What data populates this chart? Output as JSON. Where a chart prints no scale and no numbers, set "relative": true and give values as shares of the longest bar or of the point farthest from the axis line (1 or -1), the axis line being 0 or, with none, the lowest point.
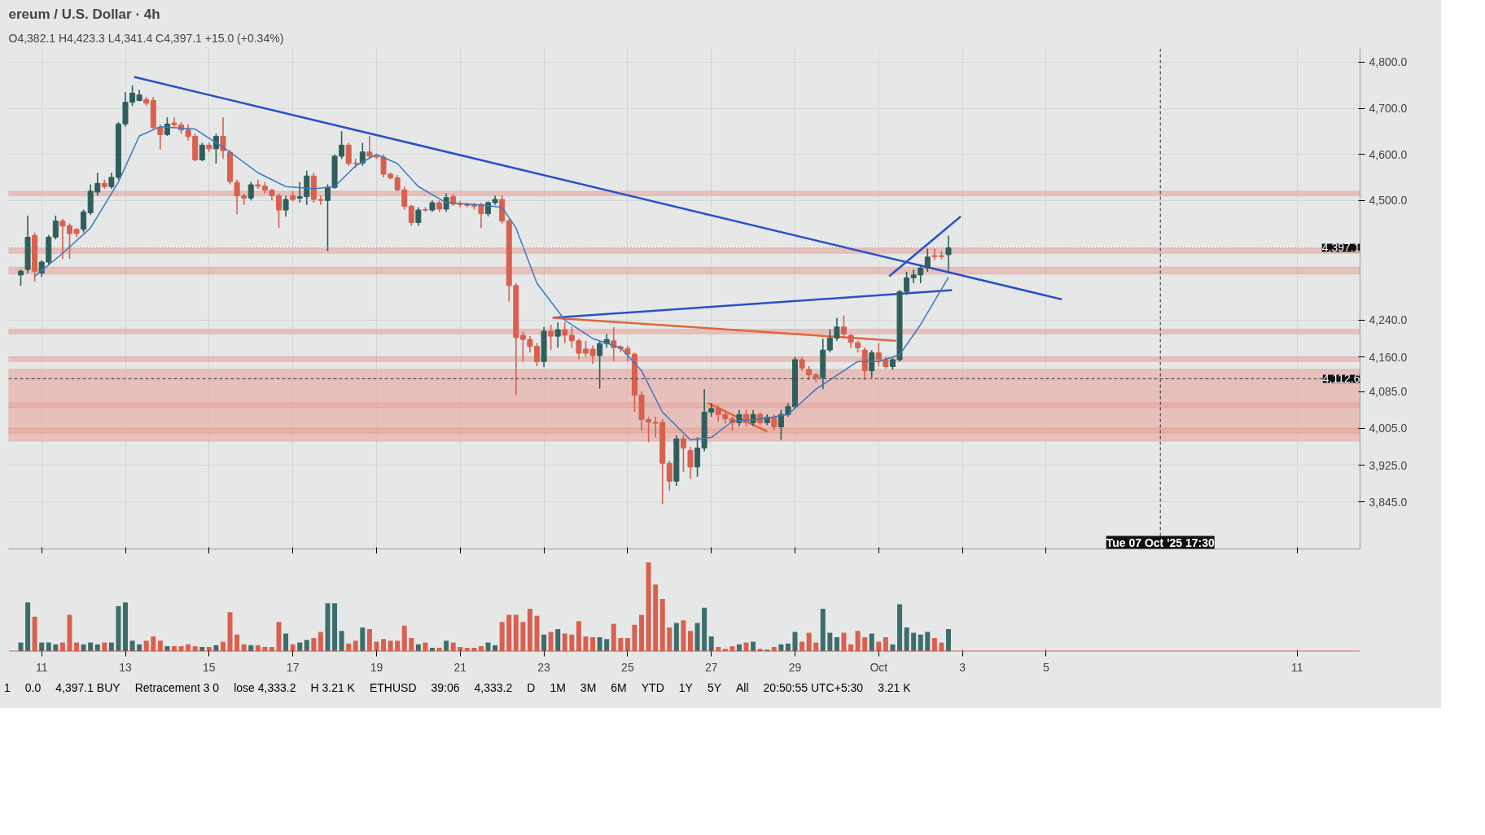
{
  "chart_data": [
    {
      "type": "candlestick",
      "title": "ereum / U.S. Dollar · 4h",
      "subtitle": "O4,382.1 H4,423.3 L4,341.4 C4,397.1 +15.0 (+0.34%)",
      "xlim": [
        "2025-09-10T05:00",
        "2025-10-12T12:00"
      ],
      "xticks": [
        {
          "value": "2025-09-11",
          "label": null
        },
        {
          "value": "2025-09-13",
          "label": null
        },
        {
          "value": "2025-09-15",
          "label": null
        },
        {
          "value": "2025-09-17",
          "label": null
        },
        {
          "value": "2025-09-19",
          "label": null
        },
        {
          "value": "2025-09-21",
          "label": null
        },
        {
          "value": "2025-09-23",
          "label": null
        },
        {
          "value": "2025-09-25",
          "label": null
        },
        {
          "value": "2025-09-27",
          "label": null
        },
        {
          "value": "2025-09-29",
          "label": null
        },
        {
          "value": "2025-10-01",
          "label": null
        },
        {
          "value": "2025-10-03",
          "label": null
        },
        {
          "value": "2025-10-05",
          "label": null
        },
        {
          "value": "2025-10-11",
          "label": null
        }
      ],
      "ylim": [
        3743,
        4830
      ],
      "yticks": [
        {
          "value": 3845,
          "label": "3,845.0"
        },
        {
          "value": 3925,
          "label": "3,925.0"
        },
        {
          "value": 4005,
          "label": "4,005.0"
        },
        {
          "value": 4085,
          "label": "4,085.0"
        },
        {
          "value": 4160,
          "label": "4,160.0"
        },
        {
          "value": 4240,
          "label": "4,240.0"
        },
        {
          "value": 4500,
          "label": "4,500.0"
        },
        {
          "value": 4600,
          "label": "4,600.0"
        },
        {
          "value": 4700,
          "label": "4,700.0"
        },
        {
          "value": 4800,
          "label": "4,800.0"
        }
      ],
      "grid": true,
      "tick_labels": "y",
      "series": [
        {
          "type": "candlestick",
          "color": "#2f5f5c",
          "x": [
            "2025-09-10T12:00",
            "2025-09-10T16:00",
            "2025-09-11T00:00",
            "2025-09-11T04:00",
            "2025-09-11T08:00",
            "2025-09-12T00:00",
            "2025-09-12T04:00",
            "2025-09-12T08:00",
            "2025-09-12T16:00",
            "2025-09-12T20:00",
            "2025-09-13T00:00",
            "2025-09-13T04:00",
            "2025-09-13T08:00",
            "2025-09-14T00:00",
            "2025-09-14T20:00",
            "2025-09-15T04:00",
            "2025-09-16T00:00",
            "2025-09-16T20:00",
            "2025-09-17T04:00",
            "2025-09-17T08:00",
            "2025-09-17T20:00",
            "2025-09-18T00:00",
            "2025-09-18T04:00",
            "2025-09-18T16:00",
            "2025-09-20T00:00",
            "2025-09-20T08:00",
            "2025-09-20T16:00",
            "2025-09-21T16:00",
            "2025-09-21T20:00",
            "2025-09-23T00:00",
            "2025-09-23T08:00",
            "2025-09-24T08:00",
            "2025-09-24T12:00",
            "2025-09-26T04:00",
            "2025-09-26T16:00",
            "2025-09-26T20:00",
            "2025-09-27T00:00",
            "2025-09-27T16:00",
            "2025-09-28T00:00",
            "2025-09-28T08:00",
            "2025-09-28T16:00",
            "2025-09-28T20:00",
            "2025-09-29T00:00",
            "2025-09-29T16:00",
            "2025-09-29T20:00",
            "2025-09-30T00:00",
            "2025-09-30T20:00",
            "2025-10-01T08:00",
            "2025-10-01T12:00",
            "2025-10-01T16:00",
            "2025-10-01T20:00",
            "2025-10-02T00:00",
            "2025-10-02T04:00",
            "2025-10-02T16:00"
          ],
          "ohlc": [
            [
              4338,
              4350,
              4315,
              4346
            ],
            [
              4350,
              4467,
              4342,
              4420
            ],
            [
              4342,
              4370,
              4334,
              4366
            ],
            [
              4366,
              4425,
              4360,
              4420
            ],
            [
              4420,
              4467,
              4415,
              4455
            ],
            [
              4437,
              4480,
              4430,
              4475
            ],
            [
              4473,
              4535,
              4468,
              4520
            ],
            [
              4518,
              4560,
              4510,
              4537
            ],
            [
              4530,
              4560,
              4525,
              4550
            ],
            [
              4550,
              4670,
              4545,
              4666
            ],
            [
              4666,
              4735,
              4660,
              4713
            ],
            [
              4713,
              4750,
              4705,
              4733
            ],
            [
              4717,
              4740,
              4715,
              4729
            ],
            [
              4643,
              4680,
              4640,
              4666
            ],
            [
              4588,
              4625,
              4585,
              4620
            ],
            [
              4612,
              4645,
              4580,
              4639
            ],
            [
              4505,
              4540,
              4500,
              4534
            ],
            [
              4479,
              4510,
              4465,
              4502
            ],
            [
              4505,
              4540,
              4495,
              4508
            ],
            [
              4508,
              4565,
              4490,
              4553
            ],
            [
              4500,
              4535,
              4390,
              4528
            ],
            [
              4528,
              4600,
              4525,
              4596
            ],
            [
              4596,
              4650,
              4590,
              4620
            ],
            [
              4581,
              4625,
              4575,
              4605
            ],
            [
              4452,
              4485,
              4445,
              4479
            ],
            [
              4479,
              4500,
              4475,
              4495
            ],
            [
              4481,
              4515,
              4475,
              4506
            ],
            [
              4471,
              4498,
              4465,
              4495
            ],
            [
              4495,
              4510,
              4490,
              4502
            ],
            [
              4150,
              4225,
              4138,
              4216
            ],
            [
              4205,
              4235,
              4180,
              4219
            ],
            [
              4163,
              4195,
              4091,
              4189
            ],
            [
              4189,
              4210,
              4180,
              4198
            ],
            [
              3890,
              3990,
              3880,
              3982
            ],
            [
              3921,
              3985,
              3900,
              3962
            ],
            [
              3962,
              4090,
              3955,
              4040
            ],
            [
              4040,
              4060,
              4030,
              4048
            ],
            [
              4017,
              4045,
              4010,
              4035
            ],
            [
              4017,
              4045,
              4010,
              4035
            ],
            [
              4017,
              4035,
              4012,
              4029
            ],
            [
              4008,
              4045,
              3980,
              4035
            ],
            [
              4035,
              4060,
              4030,
              4052
            ],
            [
              4052,
              4160,
              4048,
              4154
            ],
            [
              4115,
              4200,
              4090,
              4175
            ],
            [
              4175,
              4220,
              4170,
              4201
            ],
            [
              4201,
              4245,
              4195,
              4225
            ],
            [
              4130,
              4175,
              4115,
              4169
            ],
            [
              4139,
              4158,
              4132,
              4154
            ],
            [
              4154,
              4305,
              4150,
              4302
            ],
            [
              4302,
              4345,
              4295,
              4332
            ],
            [
              4332,
              4350,
              4320,
              4338
            ],
            [
              4338,
              4360,
              4320,
              4353
            ],
            [
              4353,
              4395,
              4345,
              4377
            ],
            [
              4382.1,
              4423.3,
              4341.4,
              4397.1
            ]
          ]
        },
        {
          "type": "candlestick",
          "color": "#d9604f",
          "x": [
            "2025-09-10T20:00",
            "2025-09-11T12:00",
            "2025-09-11T16:00",
            "2025-09-11T20:00",
            "2025-09-12T12:00",
            "2025-09-13T12:00",
            "2025-09-13T16:00",
            "2025-09-13T20:00",
            "2025-09-14T04:00",
            "2025-09-14T08:00",
            "2025-09-14T12:00",
            "2025-09-14T16:00",
            "2025-09-15T00:00",
            "2025-09-15T08:00",
            "2025-09-15T12:00",
            "2025-09-15T16:00",
            "2025-09-15T20:00",
            "2025-09-16T04:00",
            "2025-09-16T08:00",
            "2025-09-16T12:00",
            "2025-09-16T16:00",
            "2025-09-17T00:00",
            "2025-09-17T12:00",
            "2025-09-17T16:00",
            "2025-09-18T08:00",
            "2025-09-18T12:00",
            "2025-09-18T20:00",
            "2025-09-19T00:00",
            "2025-09-19T04:00",
            "2025-09-19T08:00",
            "2025-09-19T12:00",
            "2025-09-19T16:00",
            "2025-09-19T20:00",
            "2025-09-20T04:00",
            "2025-09-20T12:00",
            "2025-09-20T20:00",
            "2025-09-21T00:00",
            "2025-09-21T04:00",
            "2025-09-21T08:00",
            "2025-09-21T12:00",
            "2025-09-22T00:00",
            "2025-09-22T04:00",
            "2025-09-22T08:00",
            "2025-09-22T12:00",
            "2025-09-22T16:00",
            "2025-09-22T20:00",
            "2025-09-23T04:00",
            "2025-09-23T12:00",
            "2025-09-23T16:00",
            "2025-09-23T20:00",
            "2025-09-24T00:00",
            "2025-09-24T04:00",
            "2025-09-24T16:00",
            "2025-09-24T20:00",
            "2025-09-25T00:00",
            "2025-09-25T04:00",
            "2025-09-25T08:00",
            "2025-09-25T12:00",
            "2025-09-25T16:00",
            "2025-09-25T20:00",
            "2025-09-26T00:00",
            "2025-09-26T08:00",
            "2025-09-26T12:00",
            "2025-09-27T04:00",
            "2025-09-27T08:00",
            "2025-09-27T12:00",
            "2025-09-27T20:00",
            "2025-09-28T04:00",
            "2025-09-28T12:00",
            "2025-09-29T04:00",
            "2025-09-29T08:00",
            "2025-09-29T12:00",
            "2025-09-30T04:00",
            "2025-09-30T08:00",
            "2025-09-30T12:00",
            "2025-09-30T16:00",
            "2025-10-01T00:00",
            "2025-10-01T04:00",
            "2025-10-02T08:00",
            "2025-10-02T12:00"
          ],
          "ohlc": [
            [
              4424,
              4430,
              4323,
              4346
            ],
            [
              4455,
              4460,
              4373,
              4444
            ],
            [
              4445,
              4450,
              4373,
              4428
            ],
            [
              4437,
              4440,
              4420,
              4428
            ],
            [
              4537,
              4545,
              4525,
              4530
            ],
            [
              4719,
              4725,
              4705,
              4711
            ],
            [
              4717,
              4725,
              4655,
              4658
            ],
            [
              4658,
              4665,
              4610,
              4643
            ],
            [
              4668,
              4680,
              4660,
              4664
            ],
            [
              4664,
              4670,
              4645,
              4653
            ],
            [
              4653,
              4665,
              4630,
              4639
            ],
            [
              4639,
              4645,
              4585,
              4588
            ],
            [
              4620,
              4625,
              4605,
              4612
            ],
            [
              4639,
              4680,
              4590,
              4608
            ],
            [
              4604,
              4610,
              4535,
              4541
            ],
            [
              4539,
              4545,
              4470,
              4510
            ],
            [
              4510,
              4515,
              4490,
              4505
            ],
            [
              4534,
              4545,
              4525,
              4531
            ],
            [
              4531,
              4540,
              4515,
              4522
            ],
            [
              4522,
              4525,
              4500,
              4510
            ],
            [
              4510,
              4515,
              4440,
              4479
            ],
            [
              4510,
              4520,
              4498,
              4502
            ],
            [
              4553,
              4560,
              4495,
              4502
            ],
            [
              4502,
              4510,
              4490,
              4500
            ],
            [
              4620,
              4625,
              4575,
              4580
            ],
            [
              4581,
              4590,
              4570,
              4580
            ],
            [
              4605,
              4640,
              4590,
              4596
            ],
            [
              4596,
              4600,
              4590,
              4594
            ],
            [
              4594,
              4600,
              4550,
              4557
            ],
            [
              4557,
              4560,
              4545,
              4549
            ],
            [
              4549,
              4555,
              4520,
              4523
            ],
            [
              4523,
              4530,
              4480,
              4487
            ],
            [
              4487,
              4490,
              4445,
              4452
            ],
            [
              4480,
              4485,
              4475,
              4479
            ],
            [
              4495,
              4500,
              4475,
              4481
            ],
            [
              4508,
              4515,
              4488,
              4492
            ],
            [
              4492,
              4498,
              4485,
              4491
            ],
            [
              4492,
              4495,
              4485,
              4489
            ],
            [
              4491,
              4495,
              4480,
              4487
            ],
            [
              4491,
              4495,
              4440,
              4471
            ],
            [
              4502,
              4510,
              4450,
              4455
            ],
            [
              4455,
              4460,
              4280,
              4315
            ],
            [
              4315,
              4320,
              4077,
              4202
            ],
            [
              4207,
              4215,
              4150,
              4198
            ],
            [
              4198,
              4205,
              4170,
              4183
            ],
            [
              4183,
              4190,
              4140,
              4150
            ],
            [
              4216,
              4230,
              4175,
              4205
            ],
            [
              4219,
              4235,
              4190,
              4207
            ],
            [
              4207,
              4225,
              4180,
              4195
            ],
            [
              4195,
              4200,
              4155,
              4168
            ],
            [
              4177,
              4195,
              4160,
              4168
            ],
            [
              4177,
              4185,
              4145,
              4163
            ],
            [
              4195,
              4225,
              4150,
              4180
            ],
            [
              4182,
              4185,
              4170,
              4178
            ],
            [
              4178,
              4185,
              4150,
              4166
            ],
            [
              4166,
              4170,
              4040,
              4077
            ],
            [
              4077,
              4085,
              4000,
              4024
            ],
            [
              4024,
              4030,
              3975,
              4018
            ],
            [
              4018,
              4030,
              3985,
              4016
            ],
            [
              4018,
              4025,
              3840,
              3929
            ],
            [
              3929,
              3935,
              3870,
              3890
            ],
            [
              3982,
              3990,
              3910,
              3962
            ],
            [
              3957,
              3965,
              3895,
              3921
            ],
            [
              4048,
              4055,
              4020,
              4035
            ],
            [
              4035,
              4040,
              4015,
              4026
            ],
            [
              4026,
              4030,
              4000,
              4017
            ],
            [
              4035,
              4045,
              4010,
              4017
            ],
            [
              4035,
              4040,
              4012,
              4017
            ],
            [
              4029,
              4035,
              4000,
              4008
            ],
            [
              4154,
              4160,
              4130,
              4136
            ],
            [
              4133,
              4140,
              4110,
              4121
            ],
            [
              4121,
              4125,
              4105,
              4115
            ],
            [
              4225,
              4250,
              4200,
              4210
            ],
            [
              4207,
              4210,
              4180,
              4192
            ],
            [
              4191,
              4195,
              4170,
              4180
            ],
            [
              4175,
              4180,
              4110,
              4130
            ],
            [
              4169,
              4190,
              4140,
              4154
            ],
            [
              4154,
              4160,
              4135,
              4139
            ],
            [
              4380,
              4395,
              4370,
              4378
            ],
            [
              4380,
              4390,
              4372,
              4378
            ]
          ]
        },
        {
          "type": "line",
          "color": "#3a78c2",
          "x": [
            "2025-09-10T20:00",
            "2025-09-11T12:00",
            "2025-09-12T04:00",
            "2025-09-12T20:00",
            "2025-09-13T08:00",
            "2025-09-13T20:00",
            "2025-09-14T16:00",
            "2025-09-15T12:00",
            "2025-09-16T04:00",
            "2025-09-16T20:00",
            "2025-09-17T12:00",
            "2025-09-18T00:00",
            "2025-09-18T12:00",
            "2025-09-19T00:00",
            "2025-09-19T12:00",
            "2025-09-20T00:00",
            "2025-09-20T16:00",
            "2025-09-21T12:00",
            "2025-09-22T00:00",
            "2025-09-22T08:00",
            "2025-09-22T20:00",
            "2025-09-23T12:00",
            "2025-09-24T04:00",
            "2025-09-24T20:00",
            "2025-09-25T08:00",
            "2025-09-25T20:00",
            "2025-09-26T12:00",
            "2025-09-27T00:00",
            "2025-09-27T12:00",
            "2025-09-28T04:00",
            "2025-09-28T20:00",
            "2025-09-29T12:00",
            "2025-09-30T00:00",
            "2025-09-30T12:00",
            "2025-10-01T00:00",
            "2025-10-01T12:00",
            "2025-10-02T00:00",
            "2025-10-02T16:00"
          ],
          "values": [
            4335,
            4385,
            4440,
            4540,
            4640,
            4660,
            4655,
            4605,
            4560,
            4530,
            4525,
            4530,
            4575,
            4600,
            4580,
            4530,
            4495,
            4490,
            4485,
            4440,
            4320,
            4240,
            4200,
            4180,
            4130,
            4040,
            3980,
            3985,
            4020,
            4025,
            4035,
            4090,
            4120,
            4150,
            4150,
            4165,
            4230,
            4333
          ]
        },
        {
          "type": "line",
          "color": "#2b50c8",
          "x": [
            "2025-09-13T05:00",
            "2025-10-05T09:00"
          ],
          "values": [
            4768,
            4285
          ]
        },
        {
          "type": "line",
          "color": "#2b50c8",
          "x": [
            "2025-09-23T05:00",
            "2025-10-02T18:00"
          ],
          "values": [
            4245,
            4305
          ]
        },
        {
          "type": "line",
          "color": "#2b50c8",
          "x": [
            "2025-10-01T06:00",
            "2025-10-02T23:00"
          ],
          "values": [
            4335,
            4465
          ]
        },
        {
          "type": "line",
          "color": "#e0663a",
          "x": [
            "2025-09-23T05:00",
            "2025-10-01T10:00"
          ],
          "values": [
            4245,
            4195
          ]
        },
        {
          "type": "line",
          "color": "#e0663a",
          "x": [
            "2025-09-26T22:00",
            "2025-09-28T08:00"
          ],
          "values": [
            4060,
            3998
          ]
        }
      ],
      "bands": [
        {
          "axis": "y",
          "from": 3977,
          "to": 4133,
          "color": "#e8a59c"
        },
        {
          "axis": "y",
          "from": 4510,
          "to": 4520,
          "color": "#e8a59c"
        },
        {
          "axis": "y",
          "from": 4385,
          "to": 4395,
          "color": "#e8a59c"
        },
        {
          "axis": "y",
          "from": 4340,
          "to": 4355,
          "color": "#e8a59c"
        },
        {
          "axis": "y",
          "from": 4210,
          "to": 4220,
          "color": "#e8a59c"
        },
        {
          "axis": "y",
          "from": 4150,
          "to": 4160,
          "color": "#e8a59c"
        },
        {
          "axis": "y",
          "from": 4050,
          "to": 4060,
          "color": "#e8a59c"
        },
        {
          "axis": "y",
          "from": 3995,
          "to": 4005,
          "color": "#e8a59c"
        }
      ],
      "ref_lines": [
        {
          "axis": "y",
          "value": 4397.1,
          "label": "4,397.1",
          "color": "#777777",
          "line_style": "dotted"
        },
        {
          "axis": "y",
          "value": 4112.6,
          "label": "4,112.6",
          "color": "#333333",
          "line_style": "dashed"
        },
        {
          "axis": "x",
          "value": "2025-10-07T17:30",
          "label": "Tue 07 Oct '25 17:30",
          "color": "#333333",
          "line_style": "dashed"
        }
      ],
      "annotations": [
        "1",
        "0.0",
        "4,397.1 BUY",
        "Retracement 3 0",
        "lose 4,333.2",
        "H 3.21 K",
        "ETHUSD",
        "39:06",
        "4,333.2",
        "D",
        "1M",
        "3M",
        "6M",
        "YTD",
        "1Y",
        "5Y",
        "All",
        "20:50:55 UTC+5:30"
      ]
    },
    {
      "type": "bar",
      "relative": true,
      "annotations": [
        "3.21 K"
      ],
      "xlim": [
        "2025-09-10T05:00",
        "2025-10-12T12:00"
      ],
      "xticks": [
        {
          "value": "2025-09-11",
          "label": "11"
        },
        {
          "value": "2025-09-13",
          "label": "13"
        },
        {
          "value": "2025-09-15",
          "label": "15"
        },
        {
          "value": "2025-09-17",
          "label": "17"
        },
        {
          "value": "2025-09-19",
          "label": "19"
        },
        {
          "value": "2025-09-21",
          "label": "21"
        },
        {
          "value": "2025-09-23",
          "label": "23"
        },
        {
          "value": "2025-09-25",
          "label": "25"
        },
        {
          "value": "2025-09-27",
          "label": "27"
        },
        {
          "value": "2025-09-29",
          "label": "29"
        },
        {
          "value": "2025-10-01",
          "label": "Oct"
        },
        {
          "value": "2025-10-03",
          "label": "3"
        },
        {
          "value": "2025-10-05",
          "label": "5"
        },
        {
          "value": "2025-10-11",
          "label": "11"
        }
      ],
      "x": [
        "2025-09-10T12:00",
        "2025-09-10T16:00",
        "2025-09-10T20:00",
        "2025-09-11T00:00",
        "2025-09-11T04:00",
        "2025-09-11T08:00",
        "2025-09-11T12:00",
        "2025-09-11T16:00",
        "2025-09-11T20:00",
        "2025-09-12T00:00",
        "2025-09-12T04:00",
        "2025-09-12T08:00",
        "2025-09-12T12:00",
        "2025-09-12T16:00",
        "2025-09-12T20:00",
        "2025-09-13T00:00",
        "2025-09-13T04:00",
        "2025-09-13T08:00",
        "2025-09-13T12:00",
        "2025-09-13T16:00",
        "2025-09-13T20:00",
        "2025-09-14T00:00",
        "2025-09-14T04:00",
        "2025-09-14T08:00",
        "2025-09-14T12:00",
        "2025-09-14T16:00",
        "2025-09-14T20:00",
        "2025-09-15T00:00",
        "2025-09-15T04:00",
        "2025-09-15T08:00",
        "2025-09-15T12:00",
        "2025-09-15T16:00",
        "2025-09-15T20:00",
        "2025-09-16T00:00",
        "2025-09-16T04:00",
        "2025-09-16T08:00",
        "2025-09-16T12:00",
        "2025-09-16T16:00",
        "2025-09-16T20:00",
        "2025-09-17T00:00",
        "2025-09-17T04:00",
        "2025-09-17T08:00",
        "2025-09-17T12:00",
        "2025-09-17T16:00",
        "2025-09-17T20:00",
        "2025-09-18T00:00",
        "2025-09-18T04:00",
        "2025-09-18T08:00",
        "2025-09-18T12:00",
        "2025-09-18T16:00",
        "2025-09-18T20:00",
        "2025-09-19T00:00",
        "2025-09-19T04:00",
        "2025-09-19T08:00",
        "2025-09-19T12:00",
        "2025-09-19T16:00",
        "2025-09-19T20:00",
        "2025-09-20T00:00",
        "2025-09-20T04:00",
        "2025-09-20T08:00",
        "2025-09-20T12:00",
        "2025-09-20T16:00",
        "2025-09-20T20:00",
        "2025-09-21T00:00",
        "2025-09-21T04:00",
        "2025-09-21T08:00",
        "2025-09-21T12:00",
        "2025-09-21T16:00",
        "2025-09-21T20:00",
        "2025-09-22T00:00",
        "2025-09-22T04:00",
        "2025-09-22T08:00",
        "2025-09-22T12:00",
        "2025-09-22T16:00",
        "2025-09-22T20:00",
        "2025-09-23T00:00",
        "2025-09-23T04:00",
        "2025-09-23T08:00",
        "2025-09-23T12:00",
        "2025-09-23T16:00",
        "2025-09-23T20:00",
        "2025-09-24T00:00",
        "2025-09-24T04:00",
        "2025-09-24T08:00",
        "2025-09-24T12:00",
        "2025-09-24T16:00",
        "2025-09-24T20:00",
        "2025-09-25T00:00",
        "2025-09-25T04:00",
        "2025-09-25T08:00",
        "2025-09-25T12:00",
        "2025-09-25T16:00",
        "2025-09-25T20:00",
        "2025-09-26T00:00",
        "2025-09-26T04:00",
        "2025-09-26T08:00",
        "2025-09-26T12:00",
        "2025-09-26T16:00",
        "2025-09-26T20:00",
        "2025-09-27T00:00",
        "2025-09-27T04:00",
        "2025-09-27T08:00",
        "2025-09-27T12:00",
        "2025-09-27T16:00",
        "2025-09-27T20:00",
        "2025-09-28T00:00",
        "2025-09-28T04:00",
        "2025-09-28T08:00",
        "2025-09-28T12:00",
        "2025-09-28T16:00",
        "2025-09-28T20:00",
        "2025-09-29T00:00",
        "2025-09-29T04:00",
        "2025-09-29T08:00",
        "2025-09-29T12:00",
        "2025-09-29T16:00",
        "2025-09-29T20:00",
        "2025-09-30T00:00",
        "2025-09-30T04:00",
        "2025-09-30T08:00",
        "2025-09-30T12:00",
        "2025-09-30T16:00",
        "2025-09-30T20:00",
        "2025-10-01T00:00",
        "2025-10-01T04:00",
        "2025-10-01T08:00",
        "2025-10-01T12:00",
        "2025-10-01T16:00",
        "2025-10-01T20:00",
        "2025-10-02T00:00",
        "2025-10-02T04:00",
        "2025-10-02T08:00",
        "2025-10-02T12:00",
        "2025-10-02T16:00"
      ],
      "values": [
        0.1,
        0.55,
        0.39,
        0.1,
        0.1,
        0.08,
        0.1,
        0.41,
        0.1,
        0.08,
        0.1,
        0.08,
        0.1,
        0.1,
        0.51,
        0.55,
        0.12,
        0.08,
        0.12,
        0.17,
        0.12,
        0.06,
        0.06,
        0.06,
        0.08,
        0.06,
        0.05,
        0.05,
        0.07,
        0.11,
        0.44,
        0.19,
        0.08,
        0.07,
        0.07,
        0.05,
        0.05,
        0.33,
        0.2,
        0.08,
        0.1,
        0.13,
        0.15,
        0.22,
        0.54,
        0.54,
        0.23,
        0.09,
        0.12,
        0.27,
        0.25,
        0.11,
        0.14,
        0.12,
        0.12,
        0.29,
        0.15,
        0.08,
        0.1,
        0.04,
        0.04,
        0.12,
        0.1,
        0.05,
        0.04,
        0.04,
        0.06,
        0.1,
        0.07,
        0.33,
        0.41,
        0.41,
        0.33,
        0.48,
        0.4,
        0.19,
        0.22,
        0.25,
        0.2,
        0.19,
        0.34,
        0.17,
        0.16,
        0.16,
        0.14,
        0.31,
        0.15,
        0.15,
        0.3,
        0.41,
        1.0,
        0.75,
        0.59,
        0.27,
        0.32,
        0.35,
        0.23,
        0.32,
        0.49,
        0.17,
        0.05,
        0.03,
        0.06,
        0.08,
        0.1,
        0.11,
        0.03,
        0.02,
        0.05,
        0.08,
        0.09,
        0.22,
        0.11,
        0.21,
        0.1,
        0.48,
        0.21,
        0.16,
        0.21,
        0.08,
        0.23,
        0.16,
        0.2,
        0.11,
        0.16,
        0.08,
        0.53,
        0.27,
        0.21,
        0.19,
        0.22,
        0.15,
        0.1,
        0.25
      ],
      "colors": [
        "#3d6e6e",
        "#3d6e6e",
        "#d9604f",
        "#3d6e6e",
        "#3d6e6e",
        "#3d6e6e",
        "#d9604f",
        "#d9604f",
        "#d9604f",
        "#3d6e6e",
        "#3d6e6e",
        "#3d6e6e",
        "#d9604f",
        "#3d6e6e",
        "#3d6e6e",
        "#3d6e6e",
        "#3d6e6e",
        "#3d6e6e",
        "#d9604f",
        "#d9604f",
        "#d9604f",
        "#3d6e6e",
        "#d9604f",
        "#d9604f",
        "#d9604f",
        "#d9604f",
        "#3d6e6e",
        "#d9604f",
        "#3d6e6e",
        "#d9604f",
        "#d9604f",
        "#d9604f",
        "#d9604f",
        "#3d6e6e",
        "#d9604f",
        "#d9604f",
        "#d9604f",
        "#d9604f",
        "#3d6e6e",
        "#d9604f",
        "#3d6e6e",
        "#3d6e6e",
        "#d9604f",
        "#d9604f",
        "#3d6e6e",
        "#3d6e6e",
        "#3d6e6e",
        "#d9604f",
        "#d9604f",
        "#3d6e6e",
        "#d9604f",
        "#d9604f",
        "#d9604f",
        "#d9604f",
        "#d9604f",
        "#d9604f",
        "#d9604f",
        "#3d6e6e",
        "#d9604f",
        "#3d6e6e",
        "#d9604f",
        "#3d6e6e",
        "#d9604f",
        "#d9604f",
        "#d9604f",
        "#d9604f",
        "#d9604f",
        "#3d6e6e",
        "#3d6e6e",
        "#d9604f",
        "#d9604f",
        "#d9604f",
        "#d9604f",
        "#d9604f",
        "#d9604f",
        "#3d6e6e",
        "#d9604f",
        "#3d6e6e",
        "#d9604f",
        "#d9604f",
        "#d9604f",
        "#d9604f",
        "#d9604f",
        "#3d6e6e",
        "#3d6e6e",
        "#d9604f",
        "#d9604f",
        "#d9604f",
        "#d9604f",
        "#d9604f",
        "#d9604f",
        "#d9604f",
        "#d9604f",
        "#d9604f",
        "#3d6e6e",
        "#d9604f",
        "#d9604f",
        "#3d6e6e",
        "#3d6e6e",
        "#3d6e6e",
        "#d9604f",
        "#d9604f",
        "#d9604f",
        "#3d6e6e",
        "#d9604f",
        "#3d6e6e",
        "#d9604f",
        "#3d6e6e",
        "#d9604f",
        "#3d6e6e",
        "#3d6e6e",
        "#3d6e6e",
        "#d9604f",
        "#d9604f",
        "#d9604f",
        "#3d6e6e",
        "#3d6e6e",
        "#3d6e6e",
        "#d9604f",
        "#d9604f",
        "#d9604f",
        "#d9604f",
        "#3d6e6e",
        "#d9604f",
        "#d9604f",
        "#3d6e6e",
        "#3d6e6e",
        "#3d6e6e",
        "#3d6e6e",
        "#3d6e6e",
        "#3d6e6e",
        "#d9604f",
        "#d9604f",
        "#3d6e6e"
      ]
    }
  ]
}
